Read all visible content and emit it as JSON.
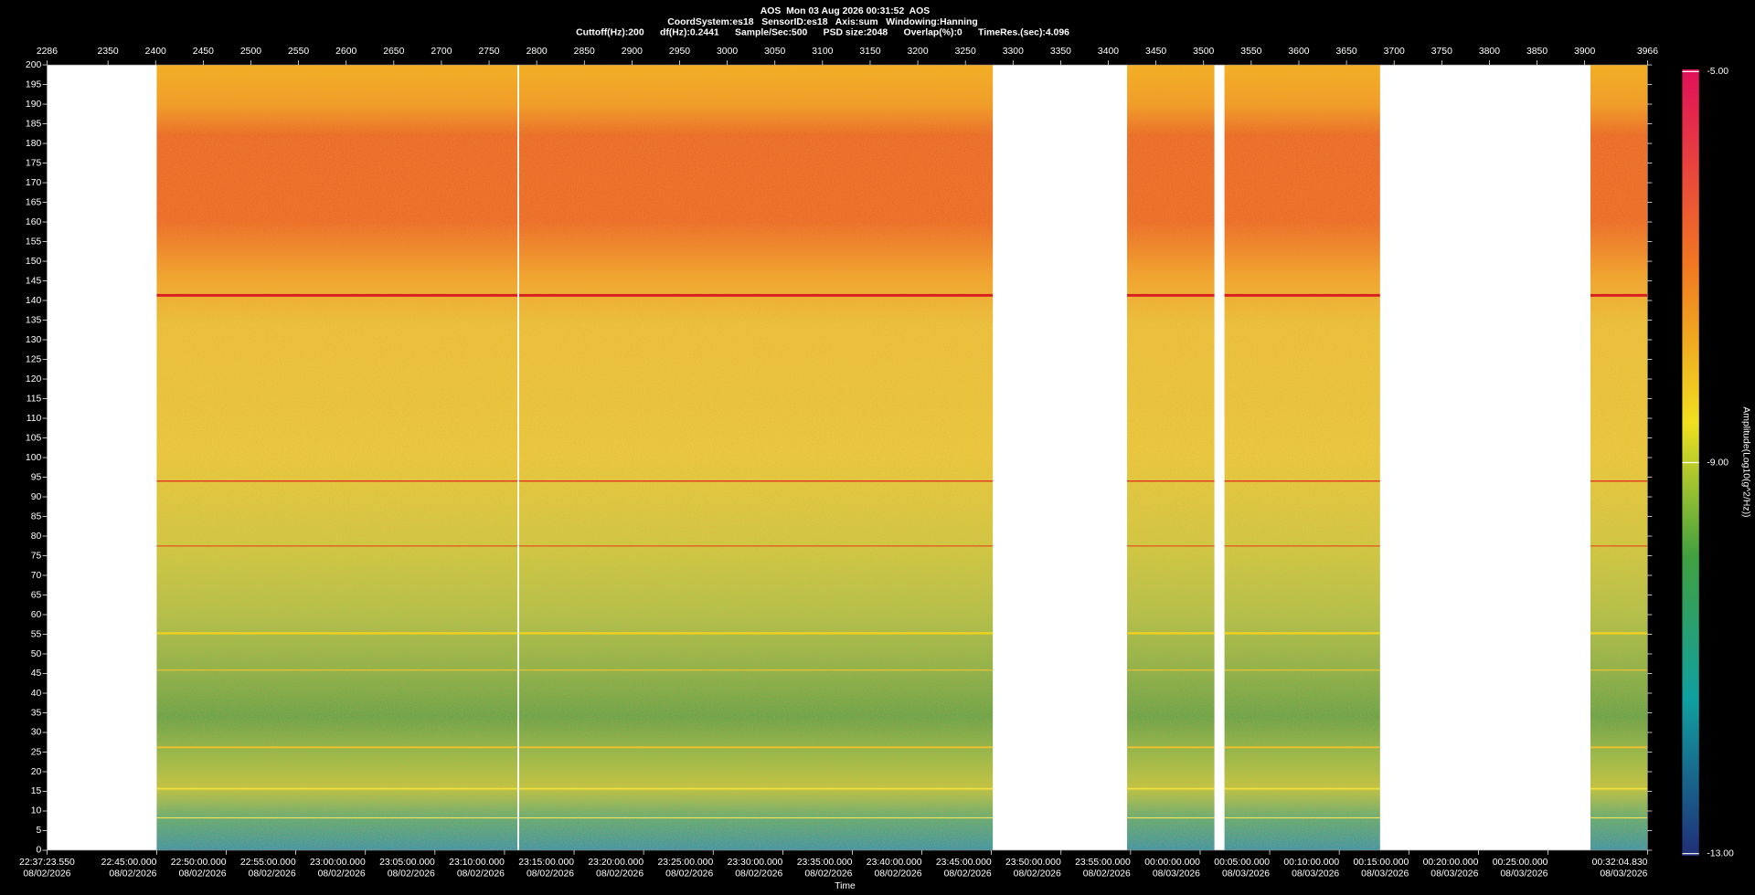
{
  "header": {
    "line1": "AOS  Mon 03 Aug 2026 00:31:52  AOS",
    "line2": "CoordSystem:es18   SensorID:es18   Axis:sum   Windowing:Hanning",
    "line3": "Cuttoff(Hz):200      df(Hz):0.2441      Sample/Sec:500      PSD size:2048      Overlap(%):0      TimeRes.(sec):4.096"
  },
  "chart_data": {
    "type": "spectrogram",
    "x_label": "Time",
    "xlim": [
      2286,
      3966
    ],
    "xticks": [
      2286,
      2350,
      2400,
      2450,
      2500,
      2550,
      2600,
      2650,
      2700,
      2750,
      2800,
      2850,
      2900,
      2950,
      3000,
      3050,
      3100,
      3150,
      3200,
      3250,
      3300,
      3350,
      3400,
      3450,
      3500,
      3550,
      3600,
      3650,
      3700,
      3750,
      3800,
      3850,
      3900,
      3966
    ],
    "ylim": [
      0,
      200
    ],
    "yticks": [
      0,
      5,
      10,
      15,
      20,
      25,
      30,
      35,
      40,
      45,
      50,
      55,
      60,
      65,
      70,
      75,
      80,
      85,
      90,
      95,
      100,
      105,
      110,
      115,
      120,
      125,
      130,
      135,
      140,
      145,
      150,
      155,
      160,
      165,
      170,
      175,
      180,
      185,
      190,
      195,
      200
    ],
    "time_ticks": [
      {
        "time": "22:37:23.550",
        "date": "08/02/2026"
      },
      {
        "time": "22:45:00.000",
        "date": "08/02/2026"
      },
      {
        "time": "22:50:00.000",
        "date": "08/02/2026"
      },
      {
        "time": "22:55:00.000",
        "date": "08/02/2026"
      },
      {
        "time": "23:00:00.000",
        "date": "08/02/2026"
      },
      {
        "time": "23:05:00.000",
        "date": "08/02/2026"
      },
      {
        "time": "23:10:00.000",
        "date": "08/02/2026"
      },
      {
        "time": "23:15:00.000",
        "date": "08/02/2026"
      },
      {
        "time": "23:20:00.000",
        "date": "08/02/2026"
      },
      {
        "time": "23:25:00.000",
        "date": "08/02/2026"
      },
      {
        "time": "23:30:00.000",
        "date": "08/02/2026"
      },
      {
        "time": "23:35:00.000",
        "date": "08/02/2026"
      },
      {
        "time": "23:40:00.000",
        "date": "08/02/2026"
      },
      {
        "time": "23:45:00.000",
        "date": "08/02/2026"
      },
      {
        "time": "23:50:00.000",
        "date": "08/02/2026"
      },
      {
        "time": "23:55:00.000",
        "date": "08/02/2026"
      },
      {
        "time": "00:00:00.000",
        "date": "08/03/2026"
      },
      {
        "time": "00:05:00.000",
        "date": "08/03/2026"
      },
      {
        "time": "00:10:00.000",
        "date": "08/03/2026"
      },
      {
        "time": "00:15:00.000",
        "date": "08/03/2026"
      },
      {
        "time": "00:20:00.000",
        "date": "08/03/2026"
      },
      {
        "time": "00:25:00.000",
        "date": "08/03/2026"
      },
      {
        "time": "00:32:04.830",
        "date": "08/03/2026"
      }
    ],
    "colorbar": {
      "label": "Amplitude(Log10(g^2/Hz))",
      "lim": [
        -13,
        -5
      ],
      "ticks": [
        {
          "value": -5,
          "label": "-5.00"
        },
        {
          "value": -9,
          "label": "-9.00"
        },
        {
          "value": -13,
          "label": "-13.00"
        }
      ]
    }
  }
}
